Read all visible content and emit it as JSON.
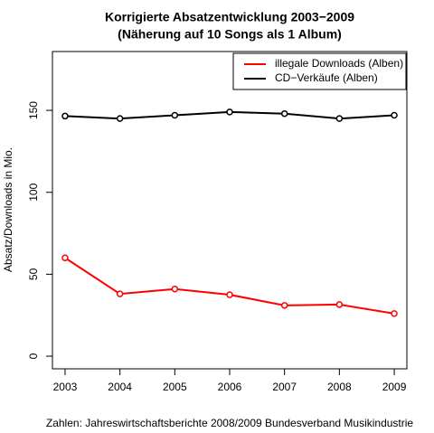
{
  "chart_data": {
    "type": "line",
    "title": "Korrigierte Absatzentwicklung 2003−2009",
    "subtitle": "(Näherung auf 10 Songs als 1 Album)",
    "y_label": "Absatz/Downloads in Mio.",
    "footnote": "Zahlen: Jahreswirtschaftsberichte 2008/2009 Bundesverband Musikindustrie",
    "x": [
      2003,
      2004,
      2005,
      2006,
      2007,
      2008,
      2009
    ],
    "xlim": [
      2002.77,
      2009.23
    ],
    "xticks": [
      2003,
      2004,
      2005,
      2006,
      2007,
      2008,
      2009
    ],
    "ylim": [
      -7.7,
      185.9
    ],
    "yticks": [
      0,
      50,
      100,
      150
    ],
    "legend_position": "topright",
    "series": [
      {
        "name": "illegale Downloads (Alben)",
        "color": "#ff0000",
        "values": [
          60,
          38,
          41,
          37.5,
          31,
          31.5,
          26
        ]
      },
      {
        "name": "CD−Verkäufe (Alben)",
        "color": "#000000",
        "values": [
          146.5,
          145,
          147,
          149,
          148,
          145,
          147
        ]
      }
    ]
  }
}
